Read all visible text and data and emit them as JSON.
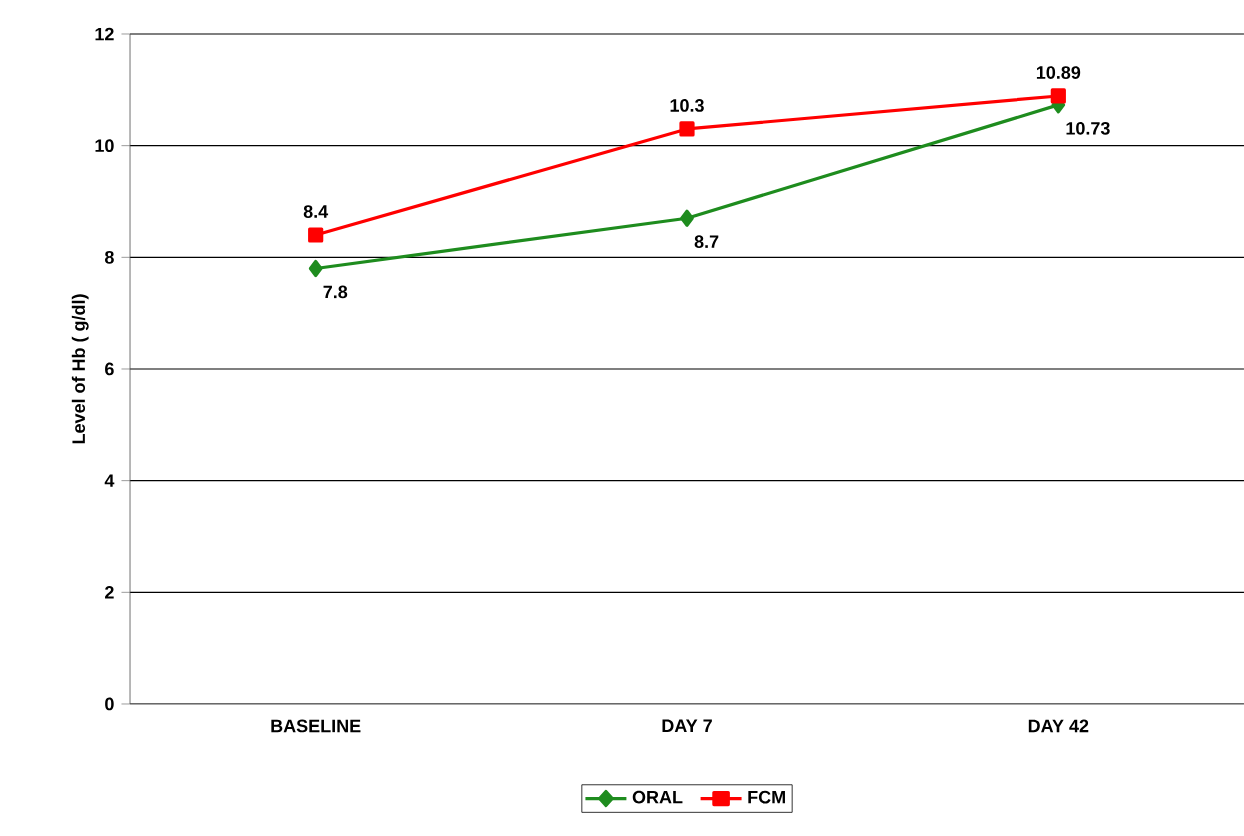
{
  "chart_data": {
    "type": "line",
    "ylabel": "Level of Hb ( g/dl)",
    "categories": [
      "BASELINE",
      "DAY 7",
      "DAY 42"
    ],
    "series": [
      {
        "name": "ORAL",
        "color": "#1e8c1e",
        "marker": "diamond",
        "values": [
          7.8,
          8.7,
          10.73
        ]
      },
      {
        "name": "FCM",
        "color": "#ff0000",
        "marker": "square",
        "values": [
          8.4,
          10.3,
          10.89
        ]
      }
    ],
    "ylim": [
      0,
      12
    ],
    "yticks": [
      0,
      2,
      4,
      6,
      8,
      10,
      12
    ],
    "grid": "y",
    "legend": "bottom",
    "data_labels": true
  }
}
